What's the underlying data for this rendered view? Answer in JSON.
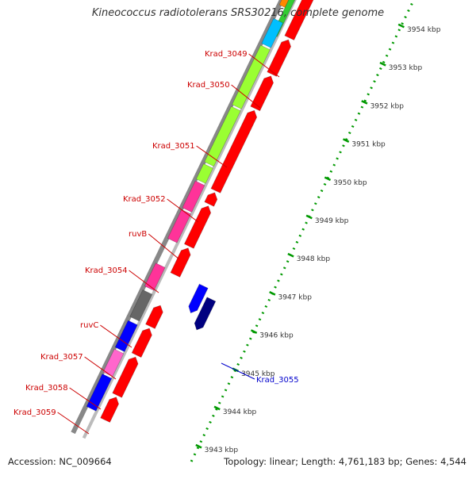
{
  "title": "Kineococcus radiotolerans SRS30216, complete genome",
  "accession": "Accession: NC_009664",
  "summary": "Topology: linear; Length: 4,761,183 bp; Genes: 4,544",
  "ticks": [
    {
      "kbp": 3954,
      "label": "3954 kbp"
    },
    {
      "kbp": 3953,
      "label": "3953 kbp"
    },
    {
      "kbp": 3952,
      "label": "3952 kbp"
    },
    {
      "kbp": 3951,
      "label": "3951 kbp"
    },
    {
      "kbp": 3950,
      "label": "3950 kbp"
    },
    {
      "kbp": 3949,
      "label": "3949 kbp"
    },
    {
      "kbp": 3948,
      "label": "3948 kbp"
    },
    {
      "kbp": 3947,
      "label": "3947 kbp"
    },
    {
      "kbp": 3946,
      "label": "3946 kbp"
    },
    {
      "kbp": 3945,
      "label": "3945 kbp"
    },
    {
      "kbp": 3944,
      "label": "3944 kbp"
    },
    {
      "kbp": 3943,
      "label": "3943 kbp"
    }
  ],
  "genes": [
    {
      "label": "Krad_3049",
      "color": "#00bfff"
    },
    {
      "label": "Krad_3050",
      "color": "#9aff32"
    },
    {
      "label": "Krad_3051",
      "color": "#9aff32"
    },
    {
      "label": "Krad_3052",
      "color": "#9aff32"
    },
    {
      "label": "ruvB",
      "color": "#ff3399"
    },
    {
      "label": "Krad_3054",
      "color": "#ff3399"
    },
    {
      "label": "ruvC",
      "color": "#ff3399"
    },
    {
      "label": "Krad_3057",
      "color": "#666666"
    },
    {
      "label": "Krad_3058",
      "color": "#0000ff"
    },
    {
      "label": "Krad_3059",
      "color": "#ff66cc"
    },
    {
      "label": "Krad_3055",
      "color": "#0000ff"
    }
  ],
  "colors": {
    "gene_label": "#cc0000",
    "reverse_label": "#0000cc",
    "cds": "#ff0000",
    "axis": "#009900",
    "backbone": "#888888"
  }
}
